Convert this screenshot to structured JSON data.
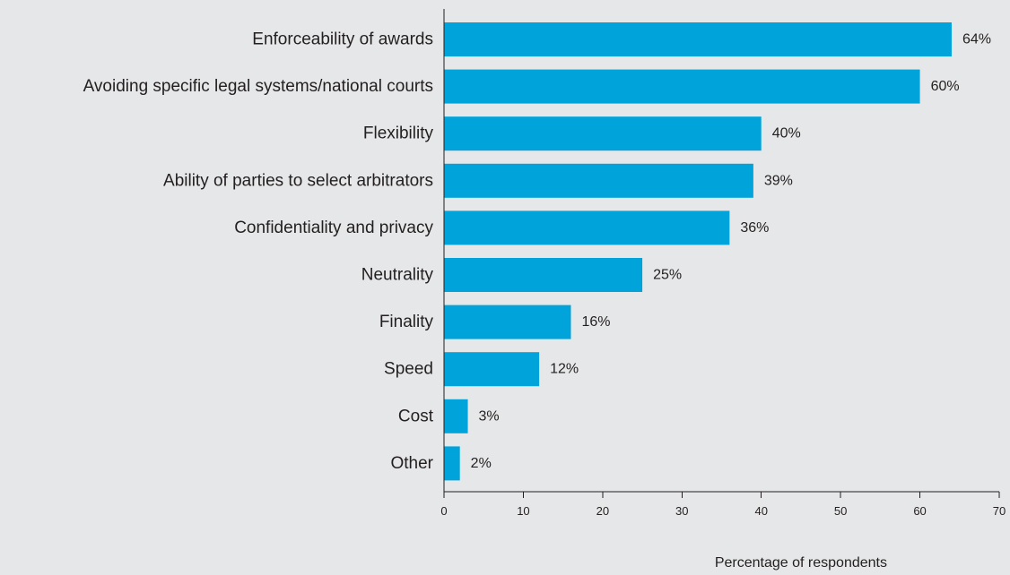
{
  "chart_data": {
    "type": "bar",
    "orientation": "horizontal",
    "categories": [
      "Enforceability of awards",
      "Avoiding specific legal systems/national courts",
      "Flexibility",
      "Ability of parties to select arbitrators",
      "Confidentiality and privacy",
      "Neutrality",
      "Finality",
      "Speed",
      "Cost",
      "Other"
    ],
    "values": [
      64,
      60,
      40,
      39,
      36,
      25,
      16,
      12,
      3,
      2
    ],
    "value_labels": [
      "64%",
      "60%",
      "40%",
      "39%",
      "36%",
      "25%",
      "16%",
      "12%",
      "3%",
      "2%"
    ],
    "title": "",
    "xlabel": "Percentage of respondents",
    "ylabel": "",
    "xlim": [
      0,
      70
    ],
    "x_ticks": [
      0,
      10,
      20,
      30,
      40,
      50,
      60,
      70
    ],
    "grid": false,
    "legend": "none",
    "colors": {
      "bar": "#00a3da",
      "background": "#e6e7e8",
      "text": "#231f20",
      "axis": "#231f20"
    }
  }
}
